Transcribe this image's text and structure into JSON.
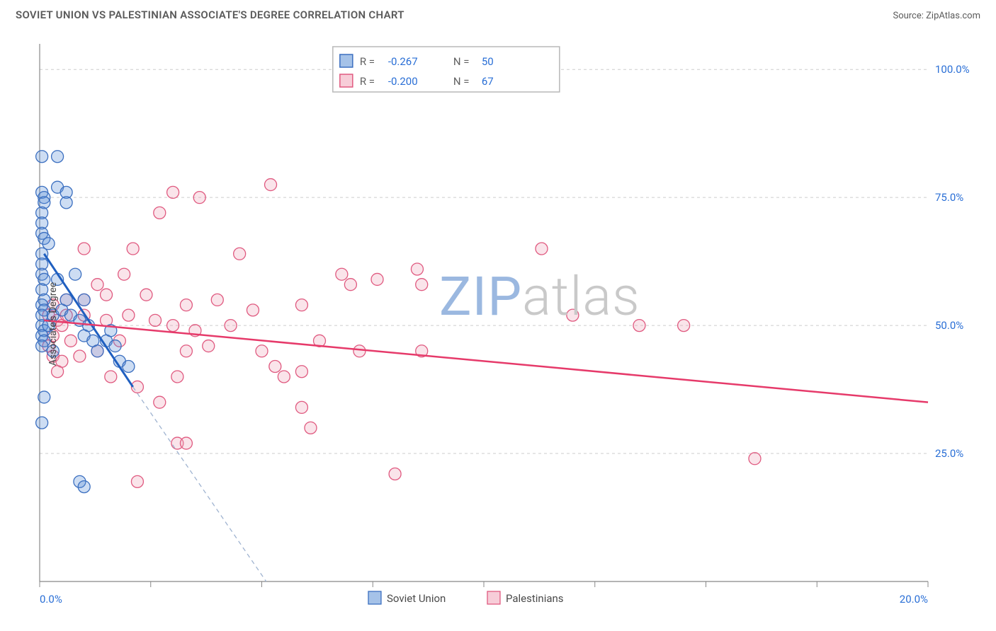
{
  "title": "SOVIET UNION VS PALESTINIAN ASSOCIATE'S DEGREE CORRELATION CHART",
  "source_prefix": "Source: ",
  "source_name": "ZipAtlas.com",
  "ylabel": "Associate's Degree",
  "watermark": "ZIPatlas",
  "watermark_colors": {
    "zip": "#9bb8e0",
    "atlas": "#c9c9c9"
  },
  "chart": {
    "type": "scatter",
    "background_color": "#ffffff",
    "border_color": "#888888",
    "grid_color": "#cccccc",
    "xlim": [
      0,
      20
    ],
    "ylim": [
      0,
      105
    ],
    "x_ticks": [
      0,
      2.5,
      5,
      7.5,
      10,
      12.5,
      15,
      17.5,
      20
    ],
    "x_tick_labels_shown": {
      "0": "0.0%",
      "20": "20.0%"
    },
    "y_gridlines": [
      25,
      50,
      75,
      100
    ],
    "y_tick_labels": {
      "25": "25.0%",
      "50": "50.0%",
      "75": "75.0%",
      "100": "100.0%"
    },
    "axis_label_color": "#2a6fd6",
    "axis_label_fontsize": 15,
    "marker_radius": 8.5,
    "marker_stroke_width": 1.3,
    "marker_fill_opacity": 0.3,
    "series": [
      {
        "name": "Soviet Union",
        "color_fill": "#5b8fd6",
        "color_stroke": "#3b6fc0",
        "R": "-0.267",
        "N": "50",
        "trend": {
          "x1": 0.1,
          "y1": 64,
          "x2": 2.1,
          "y2": 38,
          "dash_to_x": 5.1,
          "dash_to_y": 0,
          "color": "#1f5fc0",
          "width": 3,
          "dash_color": "#9fb3d0"
        },
        "points": [
          [
            0.05,
            83
          ],
          [
            0.4,
            83
          ],
          [
            0.05,
            76
          ],
          [
            0.1,
            75
          ],
          [
            0.1,
            74
          ],
          [
            0.4,
            77
          ],
          [
            0.6,
            76
          ],
          [
            0.6,
            74
          ],
          [
            0.05,
            72
          ],
          [
            0.05,
            70
          ],
          [
            0.05,
            68
          ],
          [
            0.1,
            67
          ],
          [
            0.05,
            64
          ],
          [
            0.2,
            66
          ],
          [
            0.05,
            62
          ],
          [
            0.05,
            60
          ],
          [
            0.1,
            59
          ],
          [
            0.05,
            57
          ],
          [
            0.1,
            55
          ],
          [
            0.05,
            54
          ],
          [
            0.1,
            53
          ],
          [
            0.05,
            52
          ],
          [
            0.05,
            50
          ],
          [
            0.1,
            49
          ],
          [
            0.05,
            48
          ],
          [
            0.1,
            47
          ],
          [
            0.2,
            50
          ],
          [
            0.3,
            52
          ],
          [
            0.4,
            59
          ],
          [
            0.5,
            53
          ],
          [
            0.6,
            55
          ],
          [
            0.7,
            52
          ],
          [
            0.8,
            60
          ],
          [
            0.9,
            51
          ],
          [
            1.0,
            55
          ],
          [
            1.0,
            48
          ],
          [
            1.1,
            50
          ],
          [
            1.2,
            47
          ],
          [
            1.3,
            45
          ],
          [
            1.5,
            47
          ],
          [
            1.6,
            49
          ],
          [
            1.7,
            46
          ],
          [
            1.8,
            43
          ],
          [
            2.0,
            42
          ],
          [
            0.1,
            36
          ],
          [
            0.05,
            31
          ],
          [
            0.9,
            19.5
          ],
          [
            1.0,
            18.5
          ],
          [
            0.3,
            45
          ],
          [
            0.05,
            46
          ]
        ]
      },
      {
        "name": "Palestinians",
        "color_fill": "#f0a4b8",
        "color_stroke": "#e05a80",
        "R": "-0.200",
        "N": "67",
        "trend": {
          "x1": 0.1,
          "y1": 51,
          "x2": 20,
          "y2": 35,
          "color": "#e63a6a",
          "width": 2.5
        },
        "points": [
          [
            1.0,
            65
          ],
          [
            2.1,
            65
          ],
          [
            2.7,
            72
          ],
          [
            3.0,
            76
          ],
          [
            3.6,
            75
          ],
          [
            5.2,
            77.5
          ],
          [
            1.9,
            60
          ],
          [
            1.3,
            58
          ],
          [
            1.5,
            56
          ],
          [
            1.0,
            55
          ],
          [
            0.6,
            55
          ],
          [
            0.3,
            54
          ],
          [
            0.2,
            52
          ],
          [
            0.4,
            51
          ],
          [
            0.5,
            50
          ],
          [
            0.3,
            48
          ],
          [
            0.2,
            46
          ],
          [
            0.3,
            44
          ],
          [
            0.5,
            43
          ],
          [
            0.7,
            47
          ],
          [
            1.0,
            52
          ],
          [
            1.5,
            51
          ],
          [
            2.0,
            52
          ],
          [
            2.4,
            56
          ],
          [
            2.6,
            51
          ],
          [
            3.0,
            50
          ],
          [
            3.3,
            54
          ],
          [
            0.4,
            41
          ],
          [
            1.6,
            40
          ],
          [
            2.2,
            38
          ],
          [
            2.7,
            35
          ],
          [
            3.1,
            40
          ],
          [
            3.3,
            45
          ],
          [
            3.5,
            49
          ],
          [
            3.8,
            46
          ],
          [
            3.1,
            27
          ],
          [
            3.3,
            27
          ],
          [
            4.5,
            64
          ],
          [
            4.8,
            53
          ],
          [
            5.0,
            45
          ],
          [
            5.3,
            42
          ],
          [
            5.5,
            40
          ],
          [
            5.9,
            54
          ],
          [
            5.9,
            41
          ],
          [
            5.9,
            34
          ],
          [
            6.1,
            30
          ],
          [
            6.3,
            47
          ],
          [
            6.8,
            60
          ],
          [
            7.0,
            58
          ],
          [
            7.2,
            45
          ],
          [
            7.6,
            59
          ],
          [
            8.0,
            21
          ],
          [
            8.5,
            61
          ],
          [
            8.6,
            58
          ],
          [
            8.6,
            45
          ],
          [
            11.3,
            65
          ],
          [
            12.0,
            52
          ],
          [
            13.5,
            50
          ],
          [
            14.5,
            50
          ],
          [
            16.1,
            24
          ],
          [
            2.2,
            19.5
          ],
          [
            1.3,
            45
          ],
          [
            1.8,
            47
          ],
          [
            0.9,
            44
          ],
          [
            4.0,
            55
          ],
          [
            4.3,
            50
          ],
          [
            0.6,
            52
          ]
        ]
      }
    ],
    "legend_top": {
      "box_stroke": "#b8b8b8",
      "box_fill": "#ffffff",
      "label_R": "R =",
      "label_N": "N =",
      "text_color": "#606060",
      "value_color": "#2a6fd6"
    },
    "legend_bottom": {
      "text_color": "#4a4a4a"
    }
  }
}
